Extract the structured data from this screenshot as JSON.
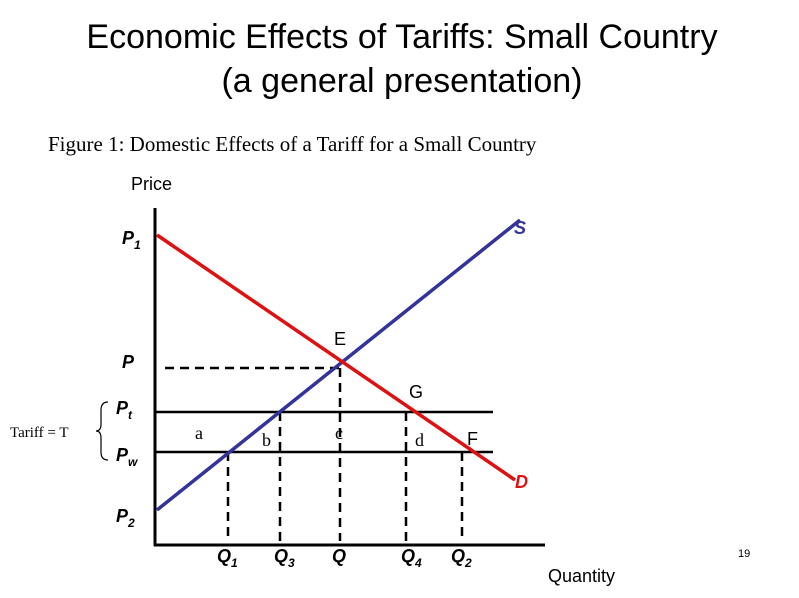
{
  "title": {
    "line1": "Economic Effects of Tariffs: Small Country",
    "line2": "(a general presentation)"
  },
  "figure_caption": "Figure 1: Domestic Effects of a Tariff for a Small Country",
  "axes": {
    "y_label": "Price",
    "x_label": "Quantity"
  },
  "curves": {
    "supply": "S",
    "demand": "D"
  },
  "points": [
    "E",
    "G",
    "F"
  ],
  "price_levels": [
    {
      "main": "P",
      "sub": "1"
    },
    {
      "main": "P"
    },
    {
      "main": "P",
      "sub": "t"
    },
    {
      "main": "P",
      "sub": "w"
    },
    {
      "main": "P",
      "sub": "2"
    }
  ],
  "quantities": [
    {
      "main": "Q",
      "sub": "1"
    },
    {
      "main": "Q",
      "sub": "3"
    },
    {
      "main": "Q"
    },
    {
      "main": "Q",
      "sub": "4"
    },
    {
      "main": "Q",
      "sub": "2"
    }
  ],
  "areas": [
    "a",
    "b",
    "c",
    "d"
  ],
  "tariff_label": "Tariff = T",
  "page_number": "19"
}
